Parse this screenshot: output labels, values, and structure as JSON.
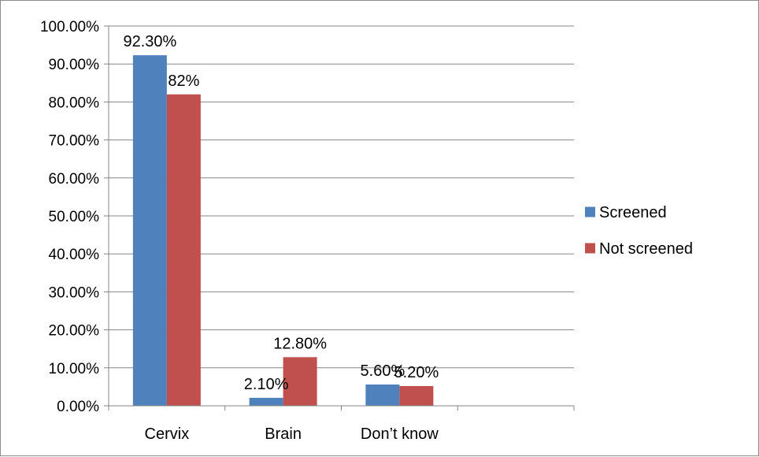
{
  "chart_data": {
    "type": "bar",
    "title": "",
    "xlabel": "",
    "ylabel": "",
    "categories": [
      "Cervix",
      "Brain",
      "Don’t know"
    ],
    "series": [
      {
        "name": "Screened",
        "color": "#4F81BD",
        "values": [
          92.3,
          2.1,
          5.6
        ],
        "labels": [
          "92.30%",
          "2.10%",
          "5.60%"
        ]
      },
      {
        "name": "Not screened",
        "color": "#C0504D",
        "values": [
          82,
          12.8,
          5.2
        ],
        "labels": [
          "82%",
          "12.80%",
          "5.20%"
        ]
      }
    ],
    "ylim": [
      0,
      100
    ],
    "y_ticks": [
      "0.00%",
      "10.00%",
      "20.00%",
      "30.00%",
      "40.00%",
      "50.00%",
      "60.00%",
      "70.00%",
      "80.00%",
      "90.00%",
      "100.00%"
    ],
    "grid": true,
    "legend": "right"
  }
}
